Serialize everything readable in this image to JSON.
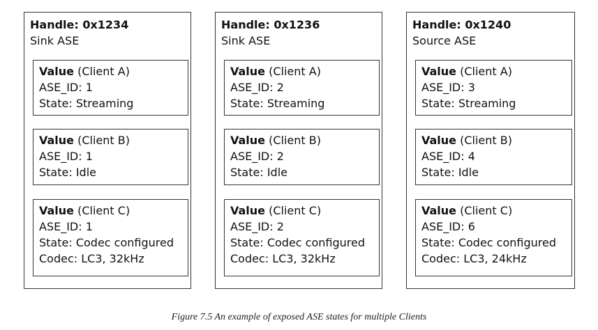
{
  "handles": [
    {
      "title": "Handle: 0x1234",
      "type": "Sink ASE",
      "values": [
        {
          "label": "Value",
          "client": "(Client A)",
          "ase_id": "ASE_ID: 1",
          "state": "State: Streaming",
          "codec": ""
        },
        {
          "label": "Value",
          "client": "(Client B)",
          "ase_id": "ASE_ID: 1",
          "state": "State: Idle",
          "codec": ""
        },
        {
          "label": "Value",
          "client": "(Client C)",
          "ase_id": "ASE_ID: 1",
          "state": "State: Codec configured",
          "codec": "Codec: LC3, 32kHz"
        }
      ]
    },
    {
      "title": "Handle: 0x1236",
      "type": "Sink ASE",
      "values": [
        {
          "label": "Value",
          "client": "(Client A)",
          "ase_id": "ASE_ID: 2",
          "state": "State: Streaming",
          "codec": ""
        },
        {
          "label": "Value",
          "client": "(Client B)",
          "ase_id": "ASE_ID: 2",
          "state": "State: Idle",
          "codec": ""
        },
        {
          "label": "Value",
          "client": "(Client C)",
          "ase_id": "ASE_ID: 2",
          "state": "State: Codec configured",
          "codec": "Codec: LC3, 32kHz"
        }
      ]
    },
    {
      "title": "Handle: 0x1240",
      "type": "Source ASE",
      "values": [
        {
          "label": "Value",
          "client": "(Client A)",
          "ase_id": "ASE_ID: 3",
          "state": "State: Streaming",
          "codec": ""
        },
        {
          "label": "Value",
          "client": "(Client B)",
          "ase_id": "ASE_ID: 4",
          "state": "State: Idle",
          "codec": ""
        },
        {
          "label": "Value",
          "client": "(Client C)",
          "ase_id": "ASE_ID: 6",
          "state": "State: Codec configured",
          "codec": "Codec: LC3, 24kHz"
        }
      ]
    }
  ],
  "caption": "Figure 7.5  An example of exposed ASE states for multiple Clients"
}
